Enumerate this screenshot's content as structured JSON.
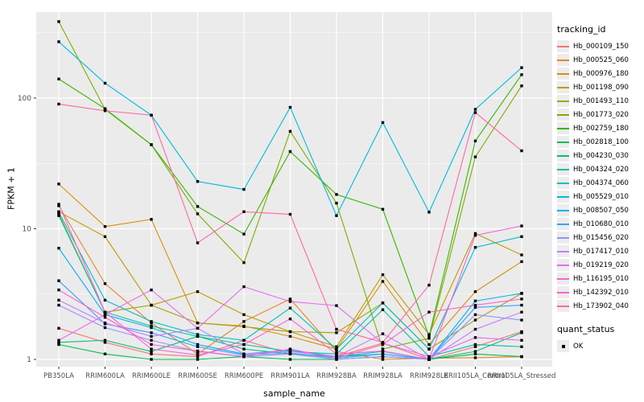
{
  "chart_data": {
    "type": "line",
    "xlabel": "sample_name",
    "ylabel": "FPKM + 1",
    "y_scale": "log10",
    "y_ticks": [
      1,
      10,
      100
    ],
    "y_minor_ticks": [
      3.1623,
      31.623,
      316.23
    ],
    "ylim": [
      0.9,
      470
    ],
    "grid": "on",
    "panel_bg": "#EBEBEB",
    "grid_color": "#FFFFFF",
    "tick_label_color": "#4D4D4D",
    "point_shape": "filled-square",
    "point_color": "#000000",
    "legend_position": "right",
    "legend_line_title": "tracking_id",
    "legend_point_title": "quant_status",
    "legend_point_items": [
      "OK"
    ],
    "categories": [
      "PB350LA",
      "RRIM600LA",
      "RRIM600LE",
      "RRIM600SE",
      "RRIM600PE",
      "RRIM901LA",
      "RRIM928BA",
      "RRIM928LA",
      "RRIM928LE",
      "RRII105LA_Control",
      "RRII105LA_Stressed"
    ],
    "series": [
      {
        "name": "Hb_000109_150",
        "color": "#F8766D",
        "values": [
          1.73,
          1.35,
          1.1,
          1.05,
          1.4,
          1.1,
          1.05,
          1.33,
          1.0,
          1.25,
          1.63
        ]
      },
      {
        "name": "Hb_000525_060",
        "color": "#E88526",
        "values": [
          15,
          3.8,
          1.9,
          1.1,
          1.95,
          2.9,
          1.15,
          1.0,
          1.02,
          1.03,
          1.05
        ]
      },
      {
        "name": "Hb_000976_180",
        "color": "#D89000",
        "values": [
          22,
          10.4,
          11.8,
          1.9,
          1.8,
          1.5,
          1.2,
          3.95,
          1.3,
          3.3,
          5.6
        ]
      },
      {
        "name": "Hb_001198_090",
        "color": "#C09B00",
        "values": [
          13.5,
          8.7,
          2.6,
          3.3,
          2.2,
          1.63,
          1.25,
          4.45,
          1.55,
          9.2,
          6.3
        ]
      },
      {
        "name": "Hb_001493_110",
        "color": "#A3A500",
        "values": [
          13,
          2.3,
          2.6,
          1.9,
          1.78,
          1.63,
          1.6,
          2.7,
          1.2,
          2.0,
          3.2
        ]
      },
      {
        "name": "Hb_001773_020",
        "color": "#7CAE00",
        "values": [
          385,
          82,
          44,
          13,
          5.5,
          55.7,
          15.7,
          1.2,
          1.45,
          35.5,
          124
        ]
      },
      {
        "name": "Hb_002759_180",
        "color": "#39B600",
        "values": [
          140,
          83,
          44,
          14.8,
          9.1,
          39,
          18.3,
          14.1,
          1.5,
          47,
          151
        ]
      },
      {
        "name": "Hb_002818_100",
        "color": "#00BB4E",
        "values": [
          1.3,
          1.1,
          1.0,
          1.0,
          1.05,
          1.0,
          1.0,
          1.05,
          1.0,
          1.1,
          1.05
        ]
      },
      {
        "name": "Hb_004230_030",
        "color": "#00BF7D",
        "values": [
          1.35,
          1.4,
          1.15,
          1.5,
          1.2,
          1.1,
          1.05,
          1.1,
          1.0,
          1.15,
          1.6
        ]
      },
      {
        "name": "Hb_004324_020",
        "color": "#00C1A3",
        "values": [
          12.6,
          2.3,
          1.8,
          1.5,
          1.3,
          1.15,
          1.1,
          2.4,
          1.05,
          1.3,
          1.25
        ]
      },
      {
        "name": "Hb_004374_060",
        "color": "#00BFC4",
        "values": [
          13.4,
          2.84,
          1.95,
          1.55,
          1.4,
          2.47,
          1.2,
          2.71,
          1.2,
          7.2,
          8.7
        ]
      },
      {
        "name": "Hb_005529_010",
        "color": "#00BAE0",
        "values": [
          270,
          130,
          74,
          23,
          20,
          85,
          12.6,
          65,
          13.4,
          82,
          171
        ]
      },
      {
        "name": "Hb_008507_050",
        "color": "#00B0F6",
        "values": [
          7.1,
          2.2,
          1.75,
          1.3,
          1.1,
          1.18,
          1.05,
          1.15,
          1.0,
          2.8,
          3.2
        ]
      },
      {
        "name": "Hb_010680_010",
        "color": "#35A2FF",
        "values": [
          4.0,
          1.87,
          1.6,
          1.25,
          1.08,
          1.12,
          1.02,
          1.1,
          1.0,
          2.5,
          2.6
        ]
      },
      {
        "name": "Hb_015456_020",
        "color": "#9590FF",
        "values": [
          2.6,
          1.75,
          1.4,
          1.15,
          1.05,
          1.1,
          1.0,
          1.05,
          1.0,
          2.2,
          2.0
        ]
      },
      {
        "name": "Hb_017417_010",
        "color": "#C77CFF",
        "values": [
          2.84,
          1.9,
          1.5,
          1.73,
          1.1,
          1.15,
          1.05,
          1.57,
          1.0,
          1.7,
          2.3
        ]
      },
      {
        "name": "Hb_019219_020",
        "color": "#E76BF3",
        "values": [
          1.4,
          2.2,
          3.4,
          1.73,
          3.6,
          2.77,
          2.58,
          1.33,
          1.05,
          1.47,
          1.4
        ]
      },
      {
        "name": "Hb_116195_010",
        "color": "#FA62DB",
        "values": [
          15.4,
          2.3,
          1.2,
          1.08,
          1.3,
          2.04,
          1.1,
          1.16,
          1.0,
          8.9,
          10.5
        ]
      },
      {
        "name": "Hb_142392_010",
        "color": "#FF61CC",
        "values": [
          3.4,
          2.1,
          1.3,
          1.16,
          1.05,
          1.2,
          1.02,
          1.3,
          2.3,
          2.6,
          2.9
        ]
      },
      {
        "name": "Hb_173902_040",
        "color": "#FF67A4",
        "values": [
          90,
          80,
          74,
          7.8,
          13.5,
          12.9,
          1.7,
          1.35,
          3.7,
          77.5,
          39.5
        ]
      }
    ]
  }
}
